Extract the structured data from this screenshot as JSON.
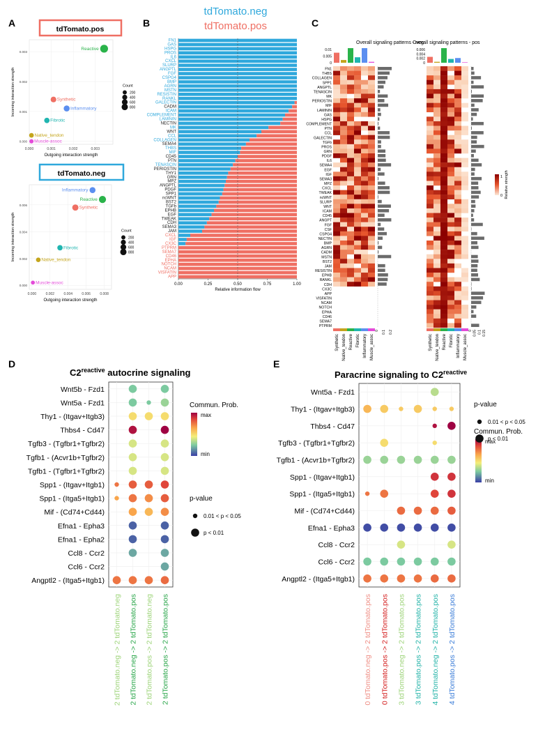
{
  "colors": {
    "neg": "#2fa8dc",
    "pos": "#ef6f63",
    "reactive": "#2ab34a",
    "synthetic": "#ef6f63",
    "inflammatory": "#5b8ff0",
    "fibrotic": "#20b5b0",
    "native_tendon": "#c4a51c",
    "muscle_assoc": "#e44ad9",
    "pathway_mixed": "#222222",
    "heat_dark": "#8b0000",
    "heat_light": "#fde8d8",
    "dot_green": "#2aa64a",
    "dot_lightgreen": "#9ed47a",
    "dot_red": "#d42020",
    "dot_teal": "#23b3a8",
    "dot_blue": "#3b7dd8"
  },
  "panel_a": {
    "label": "A",
    "pos_title": "tdTomato.pos",
    "neg_title": "tdTomato.neg",
    "xlabel": "Outgoing interaction strength",
    "ylabel": "Incoming interaction strength",
    "count_title": "Count",
    "pos_count_legend": [
      "200",
      "400",
      "600",
      "800"
    ],
    "neg_count_legend": [
      "200",
      "400",
      "600",
      "800"
    ],
    "pos_xticks": [
      "0.000",
      "0.001",
      "0.002",
      "0.003"
    ],
    "pos_yticks": [
      "0.000",
      "0.001",
      "0.002",
      "0.003"
    ],
    "neg_xticks": [
      "0.000",
      "0.002",
      "0.004",
      "0.006",
      "0.008"
    ],
    "neg_yticks": [
      "0.000",
      "0.002",
      "0.004",
      "0.006"
    ]
  },
  "scatter_pos": {
    "type": "scatter",
    "title": "tdTomato.pos",
    "xlim": [
      0,
      0.0038
    ],
    "ylim": [
      -0.0001,
      0.0034
    ],
    "points": [
      {
        "name": "Reactive",
        "x": 0.0034,
        "y": 0.0031,
        "count": 800,
        "color": "#2ab34a"
      },
      {
        "name": "Synthetic",
        "x": 0.0011,
        "y": 0.0014,
        "count": 300,
        "color": "#ef6f63"
      },
      {
        "name": "Inflammatory",
        "x": 0.0017,
        "y": 0.0011,
        "count": 350,
        "color": "#5b8ff0"
      },
      {
        "name": "Fibrotic",
        "x": 0.0008,
        "y": 0.0007,
        "count": 250,
        "color": "#20b5b0"
      },
      {
        "name": "Native_tendon",
        "x": 0.0001,
        "y": 0.0002,
        "count": 150,
        "color": "#c4a51c"
      },
      {
        "name": "Muscle-assoc",
        "x": 0.0001,
        "y": 0.0,
        "count": 100,
        "color": "#e44ad9"
      }
    ]
  },
  "scatter_neg": {
    "type": "scatter",
    "title": "tdTomato.neg",
    "xlim": [
      -0.0003,
      0.0088
    ],
    "ylim": [
      -0.0003,
      0.0075
    ],
    "points": [
      {
        "name": "Inflammatory",
        "x": 0.0067,
        "y": 0.0071,
        "count": 350,
        "color": "#5b8ff0"
      },
      {
        "name": "Reactive",
        "x": 0.0078,
        "y": 0.0064,
        "count": 600,
        "color": "#2ab34a"
      },
      {
        "name": "Synthetic",
        "x": 0.0048,
        "y": 0.0058,
        "count": 400,
        "color": "#ef6f63"
      },
      {
        "name": "Fibrotic",
        "x": 0.0031,
        "y": 0.0028,
        "count": 250,
        "color": "#20b5b0"
      },
      {
        "name": "Native_tendon",
        "x": 0.0007,
        "y": 0.0019,
        "count": 150,
        "color": "#c4a51c"
      },
      {
        "name": "Muscle-assoc",
        "x": 0.0001,
        "y": 0.0002,
        "count": 80,
        "color": "#e44ad9"
      }
    ]
  },
  "panel_b": {
    "label": "B",
    "legend_neg": "tdTomato.neg",
    "legend_pos": "tdTomato.pos"
  },
  "chart_data": {
    "type": "bar",
    "title": "",
    "xlabel": "Relative information flow",
    "ylabel": "",
    "xlim": [
      0,
      1
    ],
    "xticks": [
      "0.00",
      "0.25",
      "0.50",
      "0.75",
      "1.00"
    ],
    "series": [
      {
        "name": "tdTomato.neg",
        "color": "#2fa8dc"
      },
      {
        "name": "tdTomato.pos",
        "color": "#ef6f63"
      }
    ],
    "categories": [
      "FN1",
      "GAS",
      "HSPG",
      "PROS",
      "IL6",
      "CXCL",
      "SLURP",
      "ANGPTL",
      "FGF",
      "CSPG4",
      "BMP",
      "AGRN",
      "MSTN",
      "RESISTIN",
      "RANKL",
      "GALECTIN",
      "CADM",
      "ICAM",
      "COMPLEMENT",
      "LAMININ",
      "NECTIN",
      "MK",
      "WNT",
      "CCL",
      "COLLAGEN",
      "SEMA4",
      "THBS",
      "MIF",
      "CD45",
      "PTN",
      "TENASCIN",
      "PERIOSTIN",
      "THY1",
      "GRN",
      "MPZ",
      "ANGPTL",
      "PDGF",
      "SPP1",
      "ncWNT",
      "BST2",
      "TGFb",
      "EPHB",
      "EGF",
      "TWEAK",
      "CDH",
      "SEMA3",
      "JAM",
      "CXCL",
      "IGF",
      "CX3C",
      "PTPRM",
      "SEMA7",
      "CD46",
      "EPHA",
      "NOTCH",
      "NCAM",
      "VISFATIN",
      "APP"
    ],
    "neg_share": [
      1,
      1,
      1,
      1,
      1,
      1,
      1,
      1,
      1,
      1,
      1,
      1,
      1,
      1,
      1,
      0.98,
      0.96,
      0.93,
      0.9,
      0.88,
      0.86,
      0.76,
      0.7,
      0.66,
      0.6,
      0.57,
      0.53,
      0.52,
      0.5,
      0.48,
      0.46,
      0.44,
      0.42,
      0.41,
      0.4,
      0.39,
      0.38,
      0.37,
      0.35,
      0.34,
      0.32,
      0.3,
      0.28,
      0.26,
      0.24,
      0.22,
      0.2,
      0.1,
      0.07,
      0.06,
      0,
      0,
      0,
      0,
      0,
      0,
      0,
      0
    ],
    "label_colors": [
      "neg",
      "neg",
      "neg",
      "neg",
      "neg",
      "neg",
      "neg",
      "neg",
      "neg",
      "neg",
      "neg",
      "neg",
      "neg",
      "neg",
      "neg",
      "neg",
      "mix",
      "neg",
      "neg",
      "neg",
      "mix",
      "neg",
      "mix",
      "neg",
      "neg",
      "mix",
      "neg",
      "neg",
      "mix",
      "mix",
      "neg",
      "mix",
      "mix",
      "mix",
      "mix",
      "mix",
      "mix",
      "mix",
      "mix",
      "mix",
      "mix",
      "mix",
      "mix",
      "mix",
      "mix",
      "mix",
      "mix",
      "pos",
      "pos",
      "pos",
      "pos",
      "pos",
      "pos",
      "pos",
      "pos",
      "pos",
      "pos",
      "pos"
    ]
  },
  "panel_c": {
    "label": "C",
    "neg_title": "Overall signaling patterns - neg",
    "pos_title": "Overall signaling patterns - pos",
    "neg_top_ticks": [
      "0.01",
      "0.005",
      "0"
    ],
    "pos_top_ticks": [
      "0.006",
      "0.004",
      "0.002",
      "0"
    ],
    "neg_bottom_ticks": [
      "0",
      "0.1",
      "0.2"
    ],
    "pos_bottom_ticks": [
      "0",
      "0.05",
      "0.1",
      "0.15"
    ],
    "colorbar_title": "Relative strength",
    "colorbar_ticks": [
      "1",
      "0"
    ],
    "columns": [
      "Synthetic",
      "Native_tendon",
      "Reactive",
      "Fibrotic",
      "Inflammatory",
      "Muscle_assoc"
    ],
    "neg_rows": [
      "FN1",
      "THBS",
      "COLLAGEN",
      "SPP1",
      "ANGPTL",
      "TENASCIN",
      "MK",
      "PERIOSTIN",
      "MIF",
      "LAMININ",
      "GAS",
      "HSPG",
      "COMPLEMENT",
      "PTN",
      "CCL",
      "GALECTIN",
      "TGFb",
      "PROS",
      "GRN",
      "PDGF",
      "IL6",
      "SEMA4",
      "EGF",
      "IGF",
      "SEMA3",
      "MPZ",
      "CXCL",
      "TWEAK",
      "ncWNT",
      "SLURP",
      "WNT",
      "ICAM",
      "CD45",
      "ANGPT",
      "FGF",
      "CSF",
      "CSPG4",
      "NECTIN",
      "BMP",
      "AGRN",
      "CADM",
      "MSTN",
      "BST2",
      "JAM",
      "RESISTIN",
      "EPHB",
      "RANKL",
      "CDH"
    ],
    "pos_rows": [
      "CX3C",
      "APP",
      "VISFATIN",
      "NCAM",
      "NOTCH",
      "EPHA",
      "CD46",
      "SEMA7",
      "PTPRM"
    ],
    "neg_top_bars": [
      0.011,
      0.003,
      0.016,
      0.006,
      0.016,
      0.001
    ],
    "pos_top_bars": [
      0.0025,
      0.0004,
      0.0062,
      0.0016,
      0.002,
      0.0002
    ]
  },
  "panel_d": {
    "label": "D",
    "title_prefix": "C2",
    "title_sup": "reactive",
    "title_suffix": " autocrine signaling",
    "rows": [
      "Wnt5b  - Fzd1",
      "Wnt5a  - Fzd1",
      "Thy1  - (Itgav+Itgb3)",
      "Thbs4  - Cd47",
      "Tgfb3  - (Tgfbr1+Tgfbr2)",
      "Tgfb1  - (Acvr1b+Tgfbr2)",
      "Tgfb1  - (Tgfbr1+Tgfbr2)",
      "Spp1  - (Itgav+Itgb1)",
      "Spp1  - (Itga5+Itgb1)",
      "Mif  - (Cd74+Cd44)",
      "Efna1  - Epha3",
      "Efna1  - Epha2",
      "Ccl8  - Ccr2",
      "Ccl6  - Ccr2",
      "Angptl2  - (Itga5+Itgb1)"
    ],
    "columns": [
      "2 tdTomato.neg -> 2 tdTomato.neg",
      "2 tdTomato.neg -> 2 tdTomato.pos",
      "2 tdTomato.pos -> 2 tdTomato.neg",
      "2 tdTomato.pos -> 2 tdTomato.pos"
    ],
    "column_colors": [
      "#9ed47a",
      "#2aa64a",
      "#9ed47a",
      "#2aa64a"
    ],
    "column_highlight": [
      false,
      true,
      false,
      true
    ],
    "dots": [
      [
        null,
        0.2,
        null,
        0.2
      ],
      [
        null,
        0.2,
        0.2,
        0.25
      ],
      [
        null,
        0.45,
        0.45,
        0.45
      ],
      [
        null,
        0.95,
        null,
        1.0
      ],
      [
        null,
        0.35,
        null,
        0.35
      ],
      [
        null,
        0.35,
        null,
        0.35
      ],
      [
        null,
        0.35,
        null,
        0.35
      ],
      [
        0.7,
        0.75,
        0.75,
        0.8
      ],
      [
        0.6,
        0.7,
        0.65,
        0.75
      ],
      [
        null,
        0.6,
        0.55,
        0.65
      ],
      [
        null,
        0.05,
        null,
        0.05
      ],
      [
        null,
        0.05,
        null,
        0.05
      ],
      [
        null,
        0.15,
        null,
        0.15
      ],
      [
        null,
        null,
        null,
        0.15
      ],
      [
        0.7,
        0.7,
        0.7,
        0.72
      ]
    ],
    "small": [
      [
        false,
        false,
        false,
        false
      ],
      [
        false,
        false,
        true,
        false
      ],
      [
        false,
        false,
        false,
        false
      ],
      [
        false,
        false,
        false,
        false
      ],
      [
        false,
        false,
        false,
        false
      ],
      [
        false,
        false,
        false,
        false
      ],
      [
        false,
        false,
        false,
        false
      ],
      [
        true,
        false,
        false,
        false
      ],
      [
        true,
        false,
        false,
        false
      ],
      [
        false,
        false,
        false,
        false
      ],
      [
        false,
        false,
        false,
        false
      ],
      [
        false,
        false,
        false,
        false
      ],
      [
        false,
        false,
        false,
        false
      ],
      [
        false,
        false,
        false,
        false
      ],
      [
        false,
        false,
        false,
        false
      ]
    ],
    "legend_prob_title": "Commun. Prob.",
    "legend_max": "max",
    "legend_min": "min",
    "legend_p_title": "p-value",
    "legend_p_small": "0.01 < p < 0.05",
    "legend_p_large": "p < 0.01"
  },
  "panel_e": {
    "label": "E",
    "title_prefix": "Paracrine signaling to C2",
    "title_sup": "reactive",
    "rows": [
      "Wnt5a  - Fzd1",
      "Thy1  - (Itgav+Itgb3)",
      "Thbs4  - Cd47",
      "Tgfb3  - (Tgfbr1+Tgfbr2)",
      "Tgfb1  - (Acvr1b+Tgfbr2)",
      "Spp1  - (Itgav+Itgb1)",
      "Spp1  - (Itga5+Itgb1)",
      "Mif  - (Cd74+Cd44)",
      "Efna1  - Epha3",
      "Ccl8  - Ccr2",
      "Ccl6  - Ccr2",
      "Angptl2  - (Itga5+Itgb1)"
    ],
    "columns": [
      "0 tdTomato.neg -> 2 tdTomato.pos",
      "0 tdTomato.pos -> 2 tdTomato.pos",
      "3 tdTomato.neg -> 2 tdTomato.pos",
      "3 tdTomato.pos -> 2 tdTomato.pos",
      "4 tdTomato.neg -> 2 tdTomato.pos",
      "4 tdTomato.pos -> 2 tdTomato.pos"
    ],
    "column_colors": [
      "#ef8f86",
      "#d42020",
      "#9ed47a",
      "#23b3a8",
      "#23b3a8",
      "#3b7dd8"
    ],
    "dots": [
      [
        null,
        null,
        null,
        null,
        0.3,
        null
      ],
      [
        0.55,
        0.5,
        0.5,
        0.5,
        0.5,
        0.5
      ],
      [
        null,
        null,
        null,
        null,
        0.95,
        1.0
      ],
      [
        null,
        0.45,
        null,
        null,
        0.45,
        null
      ],
      [
        0.25,
        0.25,
        0.25,
        0.25,
        0.25,
        0.25
      ],
      [
        null,
        null,
        null,
        null,
        0.85,
        0.85
      ],
      [
        0.7,
        0.7,
        null,
        null,
        0.8,
        0.85
      ],
      [
        null,
        null,
        0.72,
        0.72,
        0.72,
        0.75
      ],
      [
        0.02,
        0.02,
        0.02,
        0.02,
        0.02,
        0.02
      ],
      [
        null,
        null,
        0.35,
        null,
        null,
        0.35
      ],
      [
        0.2,
        0.2,
        0.2,
        0.2,
        0.2,
        0.2
      ],
      [
        0.7,
        0.7,
        0.7,
        0.7,
        0.72,
        0.72
      ]
    ],
    "small": [
      [
        false,
        false,
        false,
        false,
        false,
        false
      ],
      [
        false,
        false,
        true,
        false,
        true,
        true
      ],
      [
        false,
        false,
        false,
        false,
        true,
        false
      ],
      [
        false,
        false,
        false,
        false,
        true,
        false
      ],
      [
        false,
        false,
        false,
        false,
        false,
        false
      ],
      [
        false,
        false,
        false,
        false,
        false,
        false
      ],
      [
        true,
        false,
        false,
        false,
        false,
        false
      ],
      [
        false,
        false,
        false,
        false,
        false,
        false
      ],
      [
        false,
        false,
        false,
        false,
        false,
        false
      ],
      [
        false,
        false,
        false,
        false,
        false,
        false
      ],
      [
        false,
        false,
        false,
        false,
        false,
        false
      ],
      [
        false,
        false,
        false,
        false,
        false,
        false
      ]
    ],
    "legend_prob_title": "Commun. Prob.",
    "legend_max": "max",
    "legend_min": "min",
    "legend_p_title": "p-value",
    "legend_p_small": "0.01 < p < 0.05",
    "legend_p_large": "p < 0.01"
  }
}
